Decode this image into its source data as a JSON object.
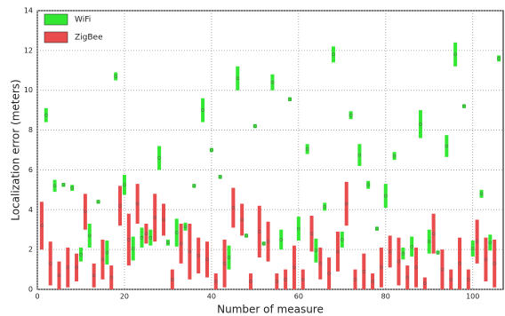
{
  "chart_data": {
    "type": "errorbar",
    "xlabel": "Number of measure",
    "ylabel": "Localization error (meters)",
    "xlim": [
      0,
      107
    ],
    "ylim": [
      0,
      14
    ],
    "xticks": [
      0,
      20,
      40,
      60,
      80,
      100
    ],
    "yticks": [
      0,
      2,
      4,
      6,
      8,
      10,
      12,
      14
    ],
    "grid": true,
    "legend": "upper left",
    "series": [
      {
        "name": "WiFi",
        "color": "#33e833",
        "x": [
          2,
          4,
          6,
          8,
          10,
          12,
          14,
          16,
          18,
          20,
          22,
          24,
          26,
          28,
          30,
          32,
          34,
          36,
          38,
          40,
          42,
          44,
          46,
          48,
          50,
          52,
          54,
          56,
          58,
          60,
          62,
          64,
          66,
          68,
          70,
          72,
          74,
          76,
          78,
          80,
          82,
          84,
          86,
          88,
          90,
          92,
          94,
          96,
          98,
          100,
          102,
          104,
          106
        ],
        "values": [
          8.75,
          5.2,
          5.25,
          5.1,
          1.75,
          2.7,
          4.4,
          1.85,
          10.7,
          5.25,
          2.05,
          2.6,
          2.6,
          6.6,
          2.35,
          2.85,
          3.15,
          5.2,
          9.0,
          7.0,
          5.65,
          1.6,
          10.6,
          2.7,
          8.2,
          2.3,
          10.4,
          2.5,
          9.55,
          3.05,
          7.05,
          1.95,
          4.15,
          11.8,
          2.5,
          8.75,
          6.75,
          5.25,
          3.05,
          4.7,
          6.7,
          1.8,
          2.15,
          8.3,
          2.4,
          1.85,
          7.2,
          11.8,
          9.2,
          2.05,
          4.8,
          2.35,
          11.6
        ],
        "errors": [
          0.35,
          0.3,
          0.1,
          0.15,
          0.35,
          0.6,
          0.1,
          0.6,
          0.2,
          0.5,
          0.6,
          0.5,
          0.4,
          0.6,
          0.15,
          0.7,
          0.2,
          0.1,
          0.6,
          0.1,
          0.1,
          0.6,
          0.6,
          0.1,
          0.1,
          0.1,
          0.4,
          0.5,
          0.1,
          0.6,
          0.25,
          0.6,
          0.2,
          0.4,
          0.4,
          0.2,
          0.55,
          0.2,
          0.1,
          0.6,
          0.2,
          0.3,
          0.5,
          0.7,
          0.6,
          0.1,
          0.55,
          0.6,
          0.1,
          0.4,
          0.2,
          0.4,
          0.15
        ]
      },
      {
        "name": "ZigBee",
        "color": "#e84c4c",
        "x": [
          1,
          3,
          5,
          7,
          9,
          11,
          13,
          15,
          17,
          19,
          21,
          23,
          25,
          27,
          29,
          31,
          33,
          35,
          37,
          39,
          41,
          43,
          45,
          47,
          49,
          51,
          53,
          55,
          57,
          59,
          61,
          63,
          65,
          67,
          69,
          71,
          73,
          75,
          77,
          79,
          81,
          83,
          85,
          87,
          89,
          91,
          93,
          95,
          97,
          99,
          101,
          103,
          105
        ],
        "values": [
          3.2,
          1.3,
          0.7,
          1.1,
          1.1,
          3.9,
          0.7,
          1.5,
          0.6,
          4.2,
          2.5,
          4.3,
          2.8,
          3.6,
          3.5,
          0.5,
          2.3,
          1.9,
          1.7,
          1.5,
          0.4,
          1.3,
          4.1,
          3.5,
          0.4,
          2.9,
          2.4,
          0.4,
          0.5,
          1.1,
          0.5,
          2.8,
          1.3,
          0.8,
          1.9,
          4.3,
          0.5,
          0.9,
          0.4,
          1.1,
          1.9,
          1.4,
          0.6,
          1.1,
          0.3,
          2.8,
          1.0,
          0.5,
          1.3,
          0.5,
          2.4,
          1.5,
          1.3
        ],
        "errors": [
          1.2,
          1.1,
          0.7,
          1.0,
          0.7,
          0.9,
          0.6,
          1.0,
          0.6,
          1.0,
          1.3,
          1.0,
          0.5,
          1.2,
          0.8,
          0.5,
          1.0,
          1.4,
          0.9,
          0.9,
          0.4,
          1.2,
          1.0,
          0.8,
          0.4,
          1.3,
          1.0,
          0.4,
          0.5,
          1.1,
          0.5,
          0.9,
          0.8,
          0.8,
          1.0,
          1.1,
          0.5,
          0.9,
          0.4,
          1.0,
          0.8,
          1.2,
          0.6,
          1.0,
          0.3,
          1.0,
          1.0,
          0.5,
          1.3,
          0.5,
          1.1,
          1.1,
          1.2
        ]
      }
    ]
  }
}
